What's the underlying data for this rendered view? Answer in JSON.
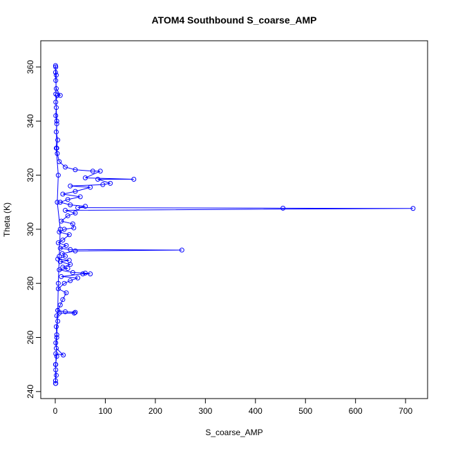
{
  "chart_data": {
    "type": "line",
    "title": "ATOM4 Southbound S_coarse_AMP",
    "xlabel": "S_coarse_AMP",
    "ylabel": "Theta (K)",
    "color": "#0000ff",
    "markers": "open-circle",
    "xlim": [
      -29,
      744
    ],
    "ylim": [
      237.4,
      369.7
    ],
    "xticks": [
      0,
      100,
      200,
      300,
      400,
      500,
      600,
      700
    ],
    "yticks": [
      240,
      260,
      280,
      300,
      320,
      340,
      360
    ],
    "x": [
      1,
      0.5,
      2,
      1,
      0.5,
      3,
      1,
      16,
      2,
      1,
      3,
      2,
      5,
      3,
      8,
      38,
      40,
      20,
      5,
      10,
      15,
      22,
      6,
      18,
      30,
      45,
      12,
      55,
      70,
      60,
      35,
      8,
      25,
      15,
      30,
      10,
      28,
      5,
      20,
      14,
      40,
      253,
      30,
      10,
      22,
      6,
      15,
      28,
      8,
      18,
      37,
      35,
      12,
      25,
      40,
      20,
      715,
      455,
      45,
      60,
      30,
      10,
      25,
      50,
      15,
      40,
      70,
      30,
      95,
      110,
      85,
      157,
      60,
      90,
      75,
      40,
      20,
      8,
      4,
      3,
      5,
      2,
      3,
      1,
      2,
      1,
      4,
      10,
      2,
      1,
      0.5,
      1,
      0.5,
      2,
      1,
      3,
      2,
      6,
      4,
      10,
      8,
      6,
      5,
      3,
      1,
      0.5
    ],
    "values": [
      243,
      244,
      246,
      248,
      250,
      253,
      254,
      253.5,
      256,
      258,
      261,
      264,
      266,
      268,
      269,
      269,
      269.3,
      269.5,
      270,
      272,
      274,
      276.5,
      278,
      280,
      281,
      282,
      282.5,
      283.5,
      283.5,
      283.8,
      284,
      285,
      285.5,
      286,
      287,
      288,
      288.5,
      289,
      290,
      291,
      292,
      292.3,
      292.5,
      293,
      294,
      295,
      296,
      298,
      299,
      300,
      300.5,
      302,
      303,
      305,
      306,
      307,
      307.7,
      307.8,
      308,
      308.5,
      309,
      310,
      311,
      312,
      313,
      314,
      315.5,
      316,
      316.5,
      317,
      318.5,
      318.5,
      319,
      321.5,
      321.5,
      322,
      323,
      325,
      328,
      330,
      333,
      336,
      339,
      342,
      345,
      347,
      349.5,
      349.5,
      352,
      355,
      358,
      360,
      360.5,
      357,
      350,
      340,
      330,
      320,
      310,
      300,
      290,
      280,
      270,
      260,
      250,
      243
    ]
  }
}
